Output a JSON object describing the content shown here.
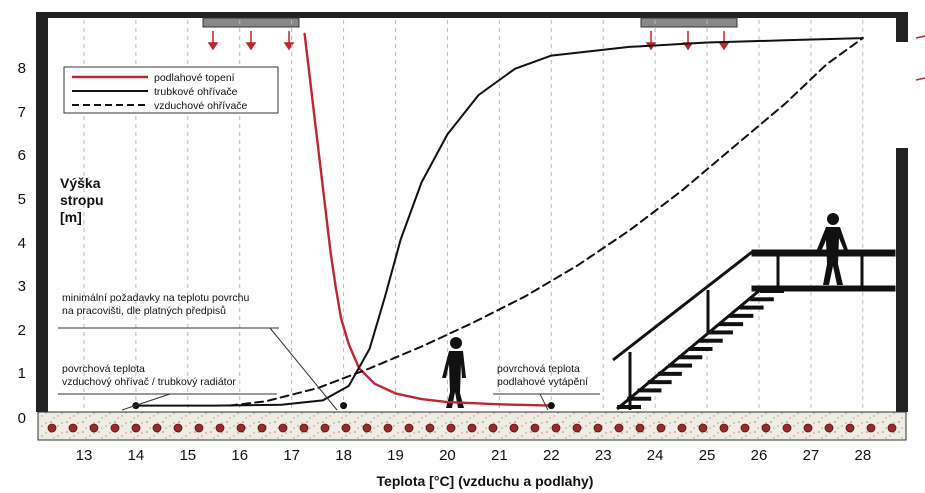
{
  "chart_data": {
    "type": "line",
    "title": "",
    "xlabel": "Teplota [°C] (vzduchu a podlahy)",
    "ylabel_lines": [
      "Výška",
      "stropu",
      "[m]"
    ],
    "xlim": [
      12.5,
      28.6
    ],
    "ylim": [
      -0.3,
      9.2
    ],
    "xticks": [
      13,
      14,
      15,
      16,
      17,
      18,
      19,
      20,
      21,
      22,
      23,
      24,
      25,
      26,
      27,
      28
    ],
    "yticks": [
      0,
      1,
      2,
      3,
      4,
      5,
      6,
      7,
      8
    ],
    "grid": "vertical dashed",
    "legend_position": "top-left",
    "series": [
      {
        "name": "podlahové topení",
        "color": "#c0262e",
        "style": "solid",
        "points": [
          [
            17.25,
            8.6
          ],
          [
            17.35,
            7.6
          ],
          [
            17.45,
            6.6
          ],
          [
            17.55,
            5.6
          ],
          [
            17.65,
            4.6
          ],
          [
            17.75,
            3.6
          ],
          [
            17.85,
            2.8
          ],
          [
            17.95,
            2.1
          ],
          [
            18.1,
            1.5
          ],
          [
            18.3,
            0.95
          ],
          [
            18.6,
            0.6
          ],
          [
            19.0,
            0.38
          ],
          [
            19.5,
            0.25
          ],
          [
            20.0,
            0.18
          ],
          [
            21.0,
            0.13
          ],
          [
            22.0,
            0.1
          ]
        ]
      },
      {
        "name": "trubkové ohřívače",
        "color": "#111111",
        "style": "solid",
        "points": [
          [
            14.0,
            0.1
          ],
          [
            15.5,
            0.1
          ],
          [
            16.8,
            0.12
          ],
          [
            17.6,
            0.22
          ],
          [
            18.1,
            0.55
          ],
          [
            18.5,
            1.4
          ],
          [
            18.8,
            2.6
          ],
          [
            19.1,
            3.9
          ],
          [
            19.5,
            5.2
          ],
          [
            20.0,
            6.3
          ],
          [
            20.6,
            7.2
          ],
          [
            21.3,
            7.8
          ],
          [
            22.0,
            8.1
          ],
          [
            23.5,
            8.3
          ],
          [
            25.0,
            8.4
          ],
          [
            26.5,
            8.45
          ],
          [
            28.0,
            8.5
          ]
        ]
      },
      {
        "name": "vzduchové ohřívače",
        "color": "#111111",
        "style": "dashed",
        "points": [
          [
            15.8,
            0.1
          ],
          [
            16.5,
            0.2
          ],
          [
            17.5,
            0.5
          ],
          [
            18.5,
            0.95
          ],
          [
            19.5,
            1.45
          ],
          [
            20.5,
            2.0
          ],
          [
            21.5,
            2.6
          ],
          [
            22.5,
            3.3
          ],
          [
            23.5,
            4.1
          ],
          [
            24.5,
            5.0
          ],
          [
            25.5,
            6.0
          ],
          [
            26.5,
            7.0
          ],
          [
            27.3,
            7.9
          ],
          [
            28.0,
            8.5
          ]
        ]
      }
    ],
    "markers": [
      {
        "x": 14.0,
        "y": 0.1
      },
      {
        "x": 18.0,
        "y": 0.1
      },
      {
        "x": 22.0,
        "y": 0.1
      }
    ],
    "annotations": [
      {
        "id": "req",
        "lines": [
          "minimální požadavky na teplotu povrchu",
          "na pracovišti, dle platných předpisů"
        ]
      },
      {
        "id": "surf-air",
        "lines": [
          "povrchová teplota",
          "vzduchový ohřívač / trubkový radiátor"
        ]
      },
      {
        "id": "surf-floor",
        "lines": [
          "povrchová teplota",
          "podlahové vytápění"
        ]
      }
    ]
  }
}
